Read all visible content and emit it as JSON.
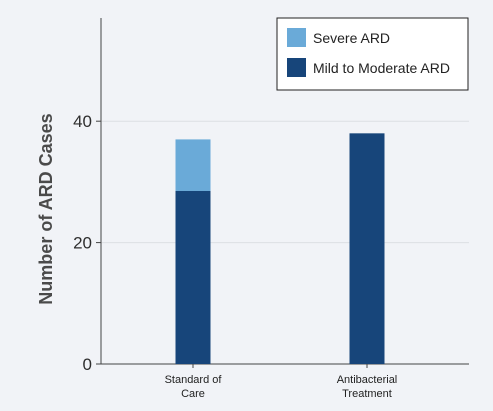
{
  "chart_data": {
    "type": "bar",
    "stacked": true,
    "categories": [
      [
        "Standard of",
        "Care"
      ],
      [
        "Antibacterial",
        "Treatment"
      ]
    ],
    "series": [
      {
        "name": "Mild to Moderate ARD",
        "color": "#17457a",
        "values": [
          28.5,
          38
        ]
      },
      {
        "name": "Severe ARD",
        "color": "#6aaad8",
        "values": [
          8.5,
          0
        ]
      }
    ],
    "ylabel": "Number of ARD Cases",
    "xlabel": "",
    "ylim": [
      0,
      57
    ],
    "yticks": [
      0,
      20,
      40
    ],
    "grid": true,
    "legend": {
      "position": "top-right",
      "entries": [
        {
          "label": "Severe ARD",
          "color": "#6aaad8"
        },
        {
          "label": "Mild to Moderate ARD",
          "color": "#17457a"
        }
      ]
    },
    "colors": {
      "background": "#f1f3f7",
      "grid": "#dcdfe4",
      "axis": "#444444"
    }
  }
}
